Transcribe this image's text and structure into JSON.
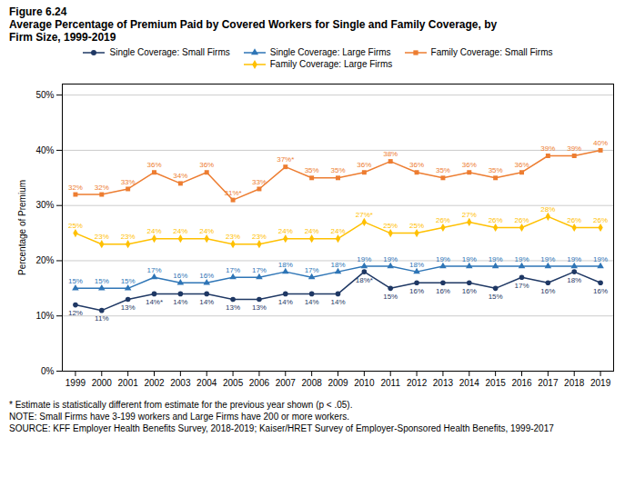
{
  "chart_data": {
    "type": "line",
    "title": "Figure 6.24",
    "subtitle": "Average Percentage of Premium Paid by Covered Workers for Single and Family Coverage, by\nFirm Size, 1999-2019",
    "ylabel": "Percentage of Premium",
    "x": [
      1999,
      2000,
      2001,
      2002,
      2003,
      2004,
      2005,
      2006,
      2007,
      2008,
      2009,
      2010,
      2011,
      2012,
      2013,
      2014,
      2015,
      2016,
      2017,
      2018,
      2019
    ],
    "xlim": [
      1998.5,
      2019.5
    ],
    "xticks": [
      1999,
      2000,
      2001,
      2002,
      2003,
      2004,
      2005,
      2006,
      2007,
      2008,
      2009,
      2010,
      2011,
      2012,
      2013,
      2014,
      2015,
      2016,
      2017,
      2018,
      2019
    ],
    "ylim": [
      0,
      52
    ],
    "yticks": [
      {
        "value": 0,
        "label": "0%"
      },
      {
        "value": 10,
        "label": "10%"
      },
      {
        "value": 20,
        "label": "20%"
      },
      {
        "value": 30,
        "label": "30%"
      },
      {
        "value": 40,
        "label": "40%"
      },
      {
        "value": 50,
        "label": "50%"
      }
    ],
    "grid": "y",
    "legend": "top",
    "data_labels": true,
    "series": [
      {
        "name": "Single Coverage: Small Firms",
        "color": "#1f3864",
        "marker": "circle",
        "values": [
          12,
          11,
          13,
          14,
          14,
          14,
          13,
          13,
          14,
          14,
          14,
          18,
          15,
          16,
          16,
          16,
          15,
          17,
          16,
          18,
          16
        ],
        "value_labels": [
          "12%",
          "11%",
          "13%",
          "14%*",
          "14%",
          "14%",
          "13%",
          "13%",
          "14%",
          "14%",
          "14%",
          "18%*",
          "15%",
          "16%",
          "16%",
          "16%",
          "15%",
          "17%",
          "16%",
          "18%",
          "16%"
        ]
      },
      {
        "name": "Single Coverage: Large Firms",
        "color": "#2e75b6",
        "marker": "triangle",
        "values": [
          15,
          15,
          15,
          17,
          16,
          16,
          17,
          17,
          18,
          17,
          18,
          19,
          19,
          18,
          19,
          19,
          19,
          19,
          19,
          19,
          19
        ],
        "value_labels": [
          "15%",
          "15%",
          "15%",
          "17%",
          "16%",
          "16%",
          "17%",
          "17%",
          "18%",
          "17%",
          "18%",
          "19%",
          "19%",
          "18%",
          "19%",
          "19%",
          "19%",
          "19%",
          "19%",
          "19%",
          "19%"
        ]
      },
      {
        "name": "Family Coverage: Small Firms",
        "color": "#ed7d31",
        "marker": "square",
        "values": [
          32,
          32,
          33,
          36,
          34,
          36,
          31,
          33,
          37,
          35,
          35,
          36,
          38,
          36,
          35,
          36,
          35,
          36,
          39,
          39,
          40
        ],
        "value_labels": [
          "32%",
          "32%",
          "33%",
          "36%",
          "34%",
          "36%",
          "31%*",
          "33%",
          "37%*",
          "35%",
          "35%",
          "36%",
          "38%",
          "36%",
          "35%",
          "36%",
          "35%",
          "36%",
          "39%",
          "39%",
          "40%"
        ]
      },
      {
        "name": "Family Coverage: Large Firms",
        "color": "#ffc000",
        "marker": "diamond",
        "values": [
          25,
          23,
          23,
          24,
          24,
          24,
          23,
          23,
          24,
          24,
          24,
          27,
          25,
          25,
          26,
          27,
          26,
          26,
          28,
          26,
          26
        ],
        "value_labels": [
          "25%",
          "23%",
          "23%",
          "24%",
          "24%",
          "24%",
          "23%",
          "23%",
          "24%",
          "24%",
          "24%",
          "27%*",
          "25%",
          "25%",
          "26%",
          "27%",
          "26%",
          "26%",
          "28%",
          "26%",
          "26%"
        ]
      }
    ],
    "annotations": [
      "* Estimate is statistically different from estimate for the previous year shown (p < .05).",
      "NOTE: Small Firms have 3-199 workers and Large Firms have 200 or more workers.",
      "SOURCE: KFF Employer Health Benefits Survey, 2018-2019; Kaiser/HRET Survey of Employer-Sponsored Health Benefits, 1999-2017"
    ]
  }
}
